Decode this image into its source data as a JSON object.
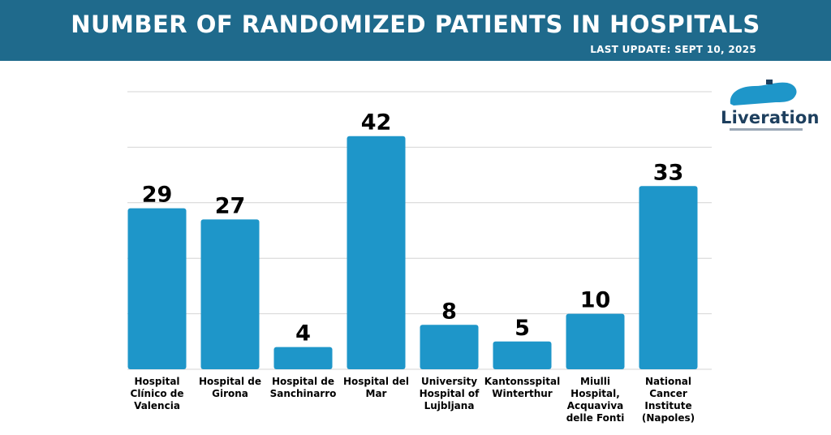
{
  "header": {
    "title": "NUMBER OF RANDOMIZED PATIENTS IN HOSPITALS",
    "last_update": "LAST UPDATE: SEPT 10, 2025"
  },
  "logo": {
    "text": "Liveration",
    "icon": "liver-icon"
  },
  "colors": {
    "header_bg": "#1f6a8c",
    "bar": "#1e96c9",
    "grid": "#d4d4d4",
    "label": "#000000"
  },
  "chart_data": {
    "type": "bar",
    "title": "NUMBER OF RANDOMIZED PATIENTS IN HOSPITALS",
    "xlabel": "",
    "ylabel": "",
    "ylim": [
      0,
      50
    ],
    "grid": true,
    "categories": [
      [
        "Hospital",
        "Clínico de",
        "Valencia"
      ],
      [
        "Hospital de",
        "Girona"
      ],
      [
        "Hospital de",
        "Sanchinarro"
      ],
      [
        "Hospital del",
        "Mar"
      ],
      [
        "University",
        "Hospital of",
        "Lujbljana"
      ],
      [
        "Kantonsspital",
        "Winterthur"
      ],
      [
        "Miulli",
        "Hospital,",
        "Acquaviva",
        "delle Fonti"
      ],
      [
        "National",
        "Cancer",
        "Institute",
        "(Napoles)"
      ]
    ],
    "values": [
      29,
      27,
      4,
      42,
      8,
      5,
      10,
      33
    ]
  }
}
